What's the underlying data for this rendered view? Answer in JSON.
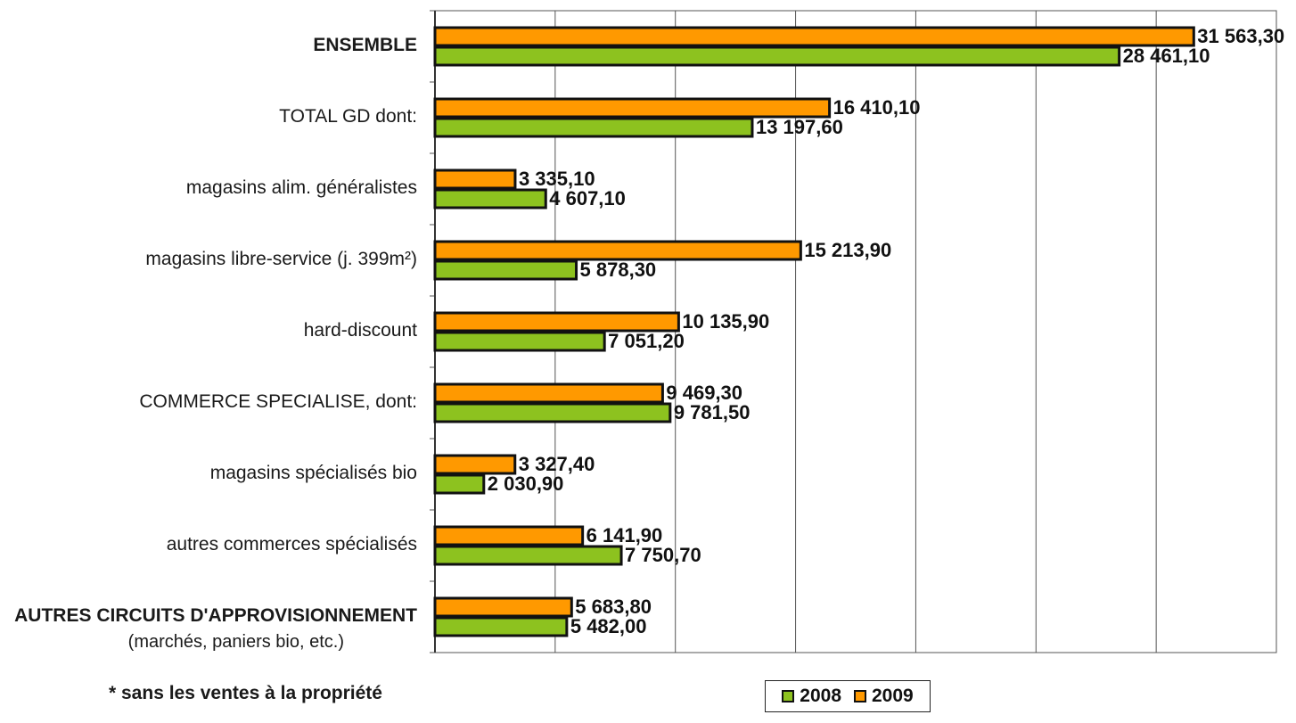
{
  "chart_data": {
    "type": "bar",
    "orientation": "horizontal",
    "categories": [
      "ENSEMBLE",
      "TOTAL GD dont:",
      "magasins alim. généralistes",
      "magasins libre-service (j. 399m²)",
      "hard-discount",
      "COMMERCE SPECIALISE, dont:",
      "magasins spécialisés bio",
      "autres commerces spécialisés",
      "AUTRES CIRCUITS D'APPROVISIONNEMENT"
    ],
    "category_note": "(marchés, paniers bio, etc.)",
    "series": [
      {
        "name": "2009",
        "color": "#ff9900",
        "values": [
          31563.3,
          16410.1,
          3335.1,
          15213.9,
          10135.9,
          9469.3,
          3327.4,
          6141.9,
          5683.8
        ],
        "labels": [
          "31 563,30",
          "16 410,10",
          "3 335,10",
          "15 213,90",
          "10 135,90",
          "9 469,30",
          "3 327,40",
          "6 141,90",
          "5 683,80"
        ]
      },
      {
        "name": "2008",
        "color": "#8dc21f",
        "values": [
          28461.1,
          13197.6,
          4607.1,
          5878.3,
          7051.2,
          9781.5,
          2030.9,
          7750.7,
          5482.0
        ],
        "labels": [
          "28 461,10",
          "13 197,60",
          "4 607,10",
          "5 878,30",
          "7 051,20",
          "9 781,50",
          "2 030,90",
          "7 750,70",
          "5 482,00"
        ]
      }
    ],
    "xlim": [
      0,
      35000
    ],
    "x_gridlines": [
      5000,
      10000,
      15000,
      20000,
      25000,
      30000,
      35000
    ],
    "grid": true,
    "legend_position": "bottom",
    "legend_order": [
      "2008",
      "2009"
    ],
    "footnote": "* sans les ventes à la propriété"
  }
}
